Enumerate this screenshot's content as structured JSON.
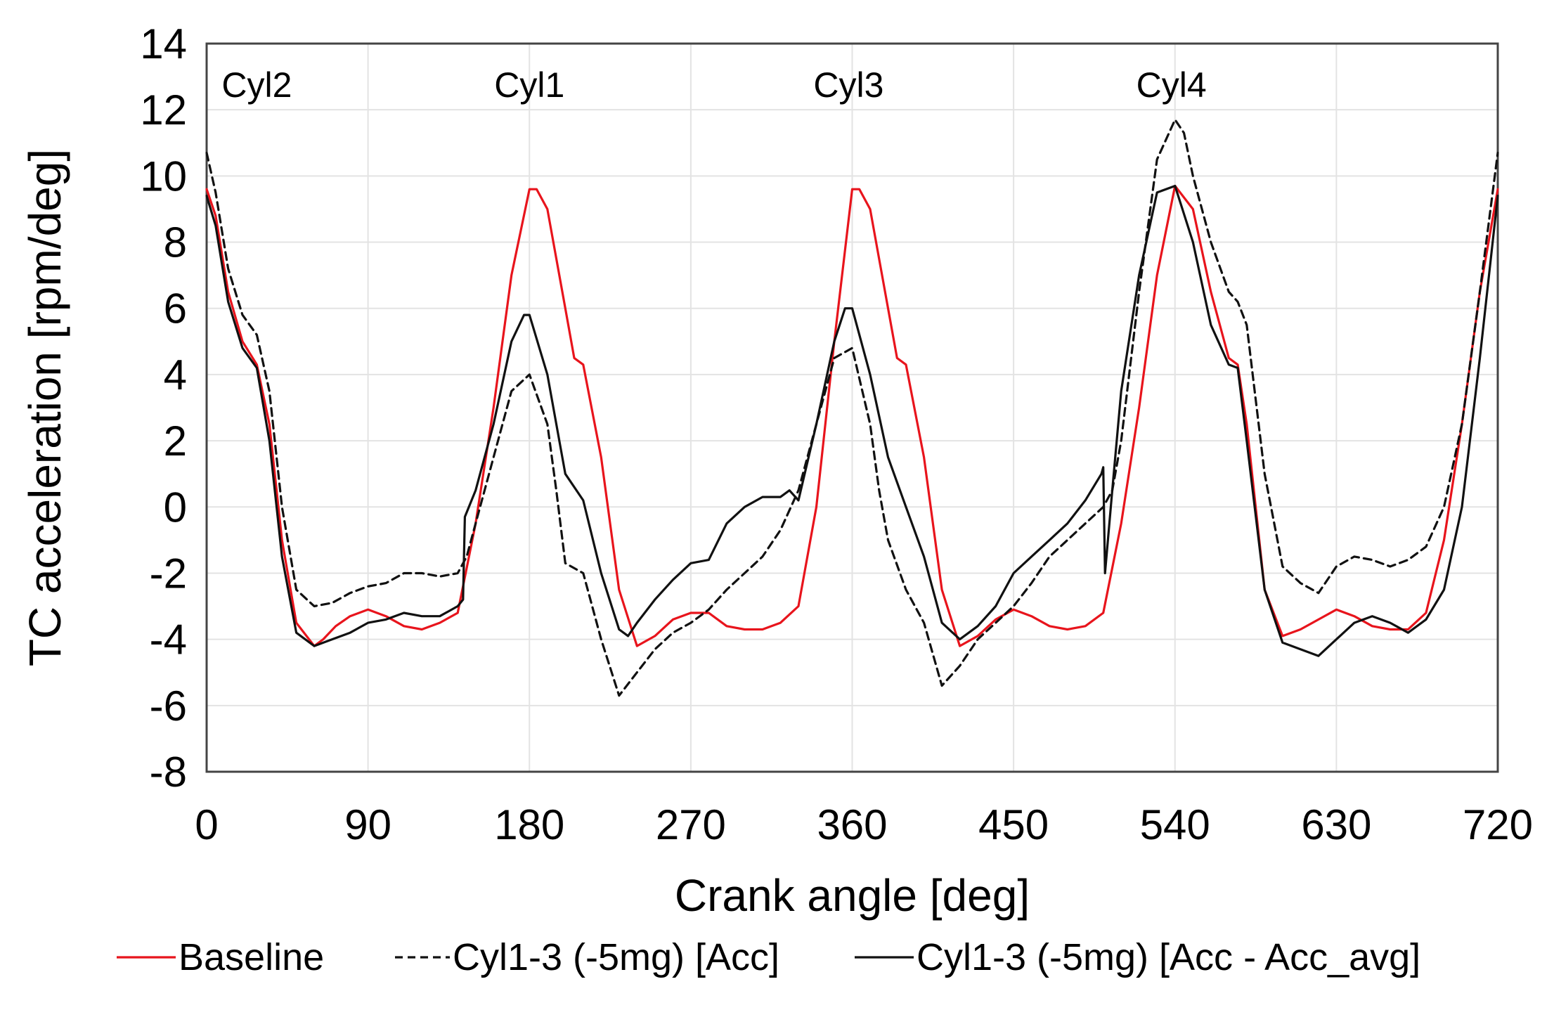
{
  "chart_data": {
    "type": "line",
    "title": "",
    "xlabel": "Crank angle [deg]",
    "ylabel": "TC acceleration [rpm/deg]",
    "xlim": [
      0,
      720
    ],
    "ylim": [
      -8,
      14
    ],
    "xticks": [
      0,
      90,
      180,
      270,
      360,
      450,
      540,
      630,
      720
    ],
    "yticks": [
      -8,
      -6,
      -4,
      -2,
      0,
      2,
      4,
      6,
      8,
      10,
      12,
      14
    ],
    "grid": true,
    "legend_position": "bottom",
    "annotations": [
      {
        "text": "Cyl2",
        "x": 28
      },
      {
        "text": "Cyl1",
        "x": 180
      },
      {
        "text": "Cyl3",
        "x": 358
      },
      {
        "text": "Cyl4",
        "x": 538
      }
    ],
    "series": [
      {
        "name": "Baseline",
        "color": "#e8141c",
        "dash": "solid",
        "x": [
          0,
          5,
          12,
          20,
          28,
          35,
          42,
          50,
          60,
          65,
          72,
          80,
          90,
          100,
          110,
          120,
          130,
          140,
          150,
          160,
          170,
          180,
          184,
          190,
          200,
          205,
          210,
          220,
          230,
          240,
          250,
          260,
          270,
          280,
          290,
          300,
          310,
          320,
          330,
          340,
          350,
          360,
          364,
          370,
          380,
          385,
          390,
          400,
          410,
          420,
          430,
          440,
          450,
          460,
          470,
          480,
          490,
          500,
          510,
          520,
          530,
          540,
          550,
          560,
          570,
          575,
          580,
          590,
          600,
          610,
          620,
          630,
          640,
          650,
          660,
          670,
          680,
          690,
          700,
          710,
          720
        ],
        "values": [
          9.6,
          8.8,
          6.5,
          5.0,
          4.3,
          2.5,
          -1.0,
          -3.5,
          -4.2,
          -4.0,
          -3.6,
          -3.3,
          -3.1,
          -3.3,
          -3.6,
          -3.7,
          -3.5,
          -3.2,
          -0.5,
          3.0,
          7.0,
          9.6,
          9.6,
          9.0,
          6.0,
          4.5,
          4.3,
          1.5,
          -2.5,
          -4.2,
          -3.9,
          -3.4,
          -3.2,
          -3.2,
          -3.6,
          -3.7,
          -3.7,
          -3.5,
          -3.0,
          0.0,
          5.0,
          9.6,
          9.6,
          9.0,
          6.0,
          4.5,
          4.3,
          1.5,
          -2.5,
          -4.2,
          -3.9,
          -3.4,
          -3.1,
          -3.3,
          -3.6,
          -3.7,
          -3.6,
          -3.2,
          -0.5,
          3.0,
          7.0,
          9.7,
          9.0,
          6.5,
          4.5,
          4.3,
          2.5,
          -2.5,
          -3.9,
          -3.7,
          -3.4,
          -3.1,
          -3.3,
          -3.6,
          -3.7,
          -3.7,
          -3.2,
          -1.0,
          2.5,
          6.5,
          9.6
        ]
      },
      {
        "name": "Cyl1-3 (-5mg) [Acc]",
        "color": "#111111",
        "dash": "dashed",
        "x": [
          0,
          5,
          12,
          20,
          28,
          35,
          42,
          50,
          60,
          70,
          80,
          90,
          100,
          110,
          120,
          130,
          140,
          145,
          150,
          160,
          170,
          180,
          190,
          195,
          200,
          210,
          220,
          230,
          240,
          250,
          260,
          270,
          280,
          290,
          300,
          310,
          320,
          330,
          340,
          350,
          360,
          370,
          375,
          380,
          390,
          400,
          410,
          420,
          430,
          440,
          450,
          460,
          470,
          480,
          490,
          500,
          505,
          510,
          520,
          530,
          540,
          545,
          550,
          560,
          570,
          575,
          580,
          590,
          600,
          610,
          620,
          630,
          640,
          650,
          660,
          670,
          680,
          690,
          700,
          710,
          720
        ],
        "values": [
          10.7,
          9.5,
          7.2,
          5.8,
          5.2,
          3.5,
          0.0,
          -2.5,
          -3.0,
          -2.9,
          -2.6,
          -2.4,
          -2.3,
          -2.0,
          -2.0,
          -2.1,
          -2.0,
          -1.5,
          -0.5,
          1.5,
          3.5,
          4.0,
          2.5,
          0.5,
          -1.7,
          -2.0,
          -4.0,
          -5.7,
          -5.0,
          -4.3,
          -3.8,
          -3.5,
          -3.1,
          -2.5,
          -2.0,
          -1.5,
          -0.7,
          0.5,
          2.5,
          4.5,
          4.8,
          2.5,
          0.5,
          -1.0,
          -2.5,
          -3.5,
          -5.4,
          -4.8,
          -4.0,
          -3.5,
          -3.0,
          -2.3,
          -1.5,
          -1.0,
          -0.5,
          0.0,
          0.5,
          2.0,
          6.5,
          10.5,
          11.7,
          11.3,
          10.0,
          8.0,
          6.5,
          6.2,
          5.5,
          1.0,
          -1.8,
          -2.3,
          -2.6,
          -1.8,
          -1.5,
          -1.6,
          -1.8,
          -1.6,
          -1.2,
          0.0,
          2.5,
          6.5,
          10.7
        ]
      },
      {
        "name": "Cyl1-3 (-5mg) [Acc - Acc_avg]",
        "color": "#111111",
        "dash": "solid",
        "x": [
          0,
          5,
          12,
          20,
          28,
          35,
          42,
          50,
          60,
          70,
          80,
          90,
          100,
          110,
          120,
          130,
          140,
          143,
          144,
          150,
          160,
          170,
          177,
          180,
          190,
          200,
          210,
          220,
          230,
          235,
          240,
          250,
          260,
          270,
          280,
          290,
          300,
          310,
          320,
          325,
          330,
          340,
          350,
          356,
          360,
          370,
          380,
          390,
          400,
          410,
          420,
          430,
          440,
          450,
          460,
          470,
          480,
          490,
          499,
          500,
          501,
          505,
          510,
          520,
          530,
          540,
          550,
          560,
          570,
          575,
          580,
          590,
          600,
          610,
          620,
          630,
          640,
          650,
          660,
          670,
          680,
          690,
          700,
          710,
          720
        ],
        "values": [
          9.4,
          8.5,
          6.2,
          4.8,
          4.2,
          2.0,
          -1.5,
          -3.8,
          -4.2,
          -4.0,
          -3.8,
          -3.5,
          -3.4,
          -3.2,
          -3.3,
          -3.3,
          -3.0,
          -2.8,
          -0.3,
          0.5,
          2.5,
          5.0,
          5.8,
          5.8,
          4.0,
          1.0,
          0.2,
          -2.0,
          -3.7,
          -3.9,
          -3.5,
          -2.8,
          -2.2,
          -1.7,
          -1.6,
          -0.5,
          0.0,
          0.3,
          0.3,
          0.5,
          0.2,
          2.5,
          5.0,
          6.0,
          6.0,
          4.0,
          1.5,
          0.0,
          -1.5,
          -3.5,
          -4.0,
          -3.6,
          -3.0,
          -2.0,
          -1.5,
          -1.0,
          -0.5,
          0.2,
          1.0,
          1.2,
          -2.0,
          0.5,
          3.5,
          7.0,
          9.5,
          9.7,
          8.0,
          5.5,
          4.3,
          4.2,
          2.0,
          -2.5,
          -4.1,
          -4.3,
          -4.5,
          -4.0,
          -3.5,
          -3.3,
          -3.5,
          -3.8,
          -3.4,
          -2.5,
          0.0,
          4.5,
          9.4
        ]
      }
    ]
  }
}
